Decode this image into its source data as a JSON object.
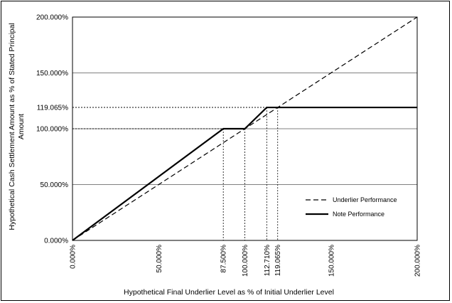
{
  "chart_data": {
    "type": "line",
    "title": "",
    "xlabel": "Hypothetical Final Underlier Level as % of Initial Underlier Level",
    "ylabel_lines": [
      "Hypothetical Cash Settlement Amount as % of Stated Principal",
      "Amount"
    ],
    "xlim": [
      0,
      200
    ],
    "ylim": [
      0,
      200
    ],
    "x_ticks": [
      {
        "value": 0,
        "label": "0.000%"
      },
      {
        "value": 50,
        "label": "50.000%"
      },
      {
        "value": 87.5,
        "label": "87.500%"
      },
      {
        "value": 100,
        "label": "100.000%"
      },
      {
        "value": 112.71,
        "label": "112.710%"
      },
      {
        "value": 119.065,
        "label": "119.065%"
      },
      {
        "value": 150,
        "label": "150.000%"
      },
      {
        "value": 200,
        "label": "200.000%"
      }
    ],
    "y_ticks": [
      {
        "value": 0,
        "label": "0.000%"
      },
      {
        "value": 50,
        "label": "50.000%"
      },
      {
        "value": 100,
        "label": "100.000%"
      },
      {
        "value": 119.065,
        "label": "119.065%"
      },
      {
        "value": 150,
        "label": "150.000%"
      },
      {
        "value": 200,
        "label": "200.000%"
      }
    ],
    "gridlines_y": [
      50,
      100,
      150
    ],
    "series": [
      {
        "name": "Underlier Performance",
        "style": "dashed",
        "color": "#000000",
        "x": [
          0,
          200
        ],
        "y": [
          0,
          200
        ]
      },
      {
        "name": "Note Performance",
        "style": "solid",
        "color": "#000000",
        "x": [
          0,
          87.5,
          100,
          112.71,
          119.065,
          200
        ],
        "y": [
          0,
          100,
          100,
          119.065,
          119.065,
          119.065
        ]
      }
    ],
    "reference_lines": [
      {
        "x": 87.5,
        "y": 100
      },
      {
        "x": 100,
        "y": 100
      },
      {
        "x": 112.71,
        "y": 119.065
      },
      {
        "x": 119.065,
        "y": 119.065
      }
    ],
    "legend": {
      "position": "lower-right",
      "entries": [
        "Underlier Performance",
        "Note Performance"
      ]
    },
    "grid": true,
    "gridline_color": "#808080"
  }
}
